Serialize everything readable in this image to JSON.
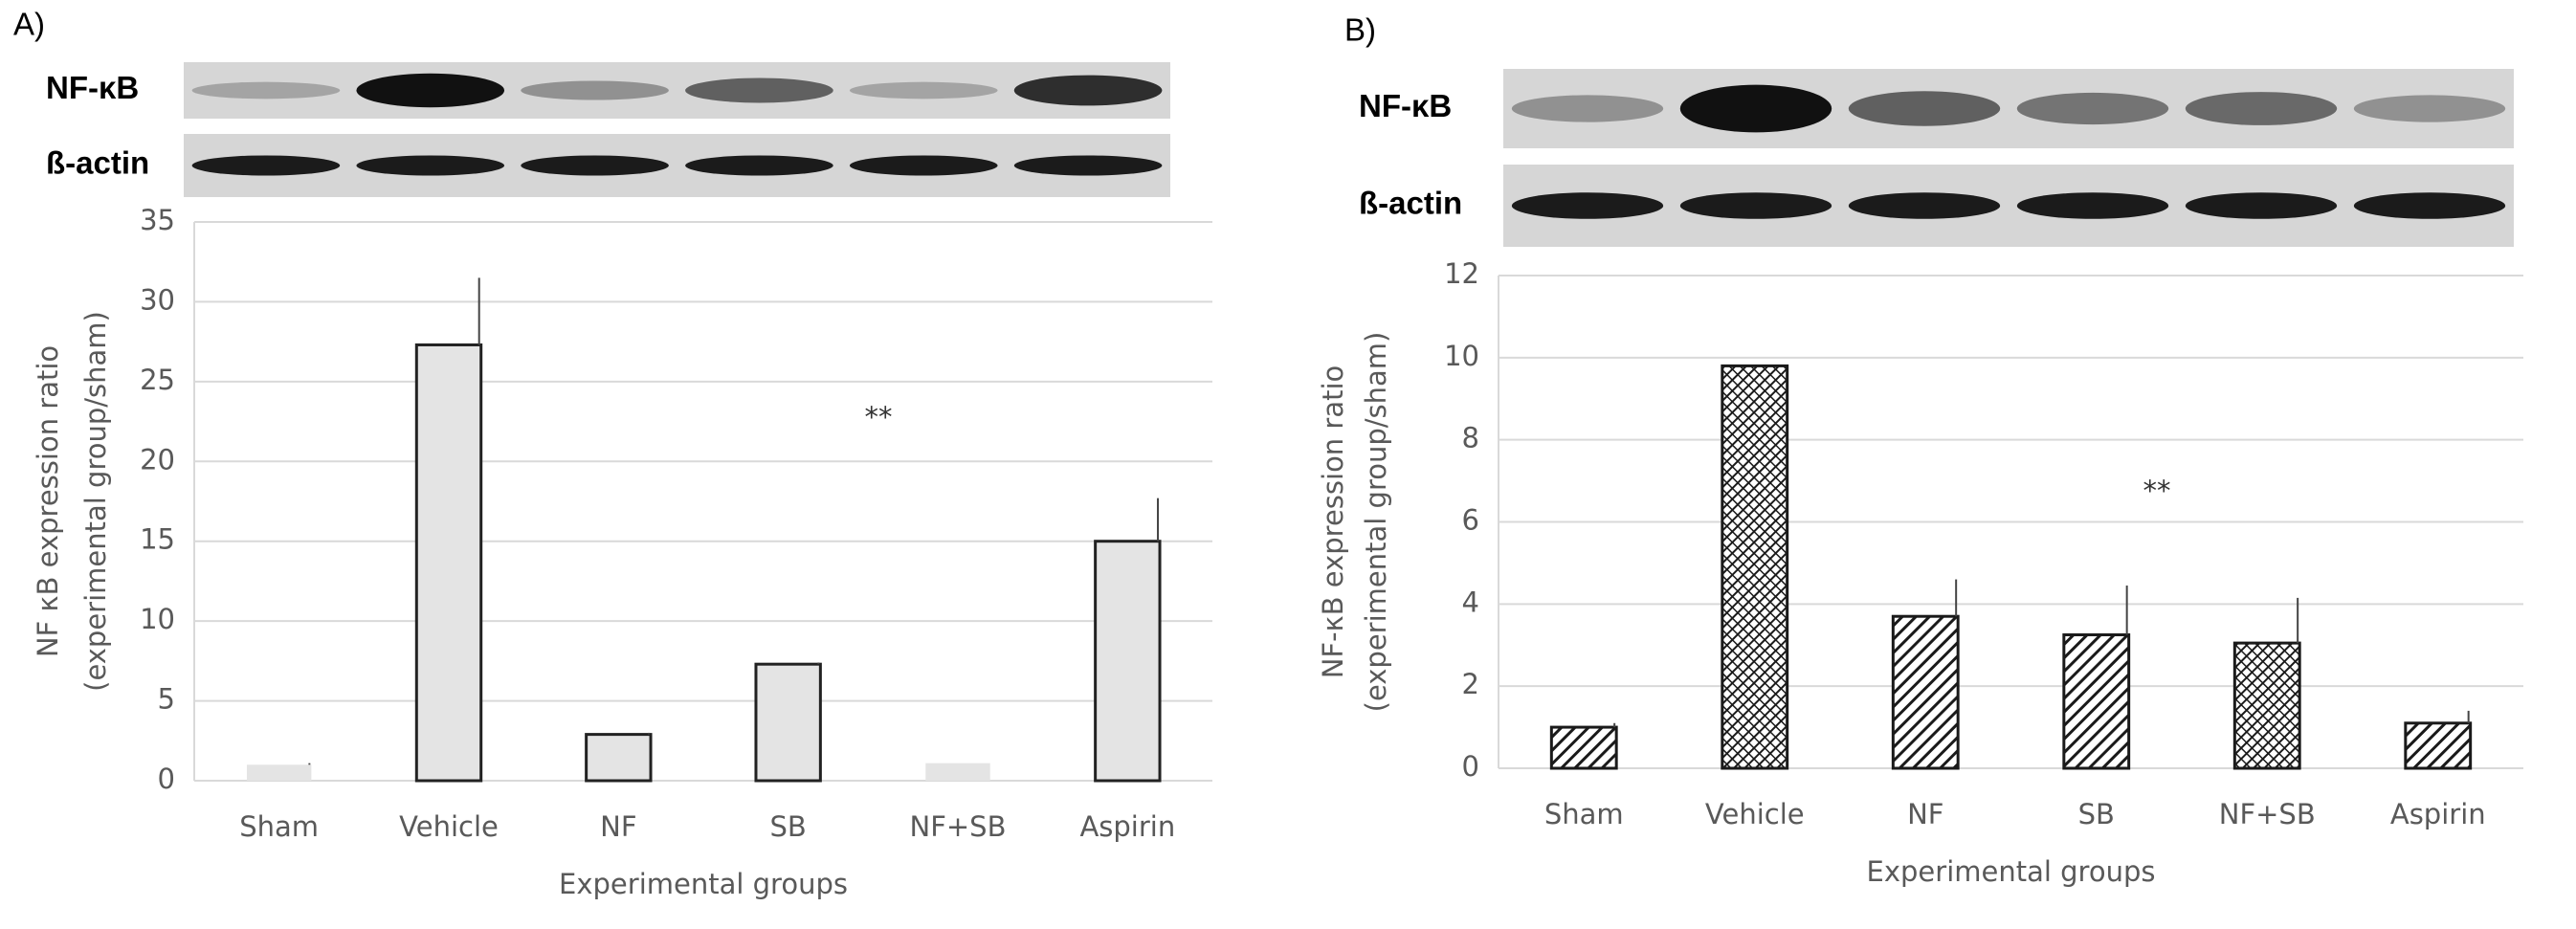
{
  "chart_data": [
    {
      "type": "bar",
      "panel_label": "A)",
      "blot_labels": [
        "NF-κB",
        "ß-actin"
      ],
      "y_label": [
        "NF κB expression ratio",
        "(experimental group/sham)"
      ],
      "x_label": "Experimental groups",
      "categories": [
        "Sham",
        "Vehicle",
        "NF",
        "SB",
        "NF+SB",
        "Aspirin"
      ],
      "values": [
        1,
        27.3,
        2.9,
        7.3,
        1.1,
        15
      ],
      "errors": [
        0.1,
        4.2,
        0.1,
        0.1,
        null,
        2.7
      ],
      "color": "#e4e4e4",
      "ylim": [
        0,
        35
      ],
      "yticks": [
        0,
        5,
        10,
        15,
        20,
        25,
        30,
        35
      ],
      "grid": true,
      "annotations": [
        "**"
      ]
    },
    {
      "type": "bar",
      "panel_label": "B)",
      "blot_labels": [
        "NF-κB",
        "ß-actin"
      ],
      "y_label": [
        "NF-κB expression ratio",
        "(experimental group/sham)"
      ],
      "x_label": "Experimental groups",
      "categories": [
        "Sham",
        "Vehicle",
        "NF",
        "SB",
        "NF+SB",
        "Aspirin"
      ],
      "values": [
        1,
        9.8,
        3.7,
        3.25,
        3.05,
        1.1
      ],
      "errors": [
        0.1,
        null,
        0.9,
        1.2,
        1.1,
        0.3
      ],
      "color": "#1a1a1a",
      "hatch": [
        "diagonal",
        "cross",
        "diagonal",
        "diagonal",
        "cross",
        "diagonal"
      ],
      "ylim": [
        0,
        12
      ],
      "yticks": [
        0,
        2,
        4,
        6,
        8,
        10,
        12
      ],
      "grid": true,
      "annotations": [
        "**"
      ]
    }
  ]
}
